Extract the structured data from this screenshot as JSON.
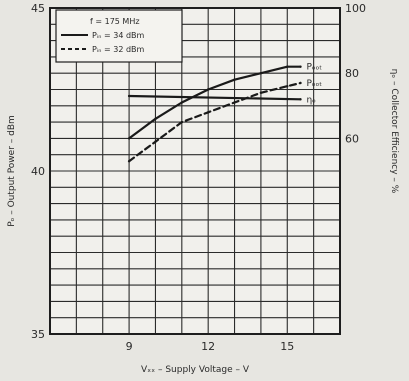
{
  "chart_data": {
    "type": "line",
    "xlabel": "Vₓₓ – Supply Voltage – V",
    "ylabel_left": "Pₒ – Output Power – dBm",
    "ylabel_right": "ηₒ – Collector Efficiency – %",
    "xlim": [
      6,
      17
    ],
    "ylim_left": [
      35,
      45
    ],
    "ylim_right": [
      0,
      100
    ],
    "x_ticks": [
      9,
      12,
      15
    ],
    "y_ticks_left": [
      35,
      40,
      45
    ],
    "y_ticks_right": [
      60,
      80,
      100
    ],
    "grid": true,
    "legend": {
      "placement": "top-left",
      "condition": "f = 175 MHz",
      "entries": [
        "Pᵢₙ = 34 dBm",
        "Pᵢₙ = 32 dBm"
      ]
    },
    "series": [
      {
        "name": "Pᵢₙ = 34 dBm",
        "label": "Pₒₒₜ",
        "axis": "left",
        "style": "solid",
        "x": [
          9,
          10,
          11,
          12,
          13,
          14,
          15,
          15.5
        ],
        "y": [
          41.0,
          41.6,
          42.1,
          42.5,
          42.8,
          43.0,
          43.2,
          43.2
        ]
      },
      {
        "name": "Pᵢₙ = 32 dBm",
        "label": "Pₒₒₜ",
        "axis": "left",
        "style": "dashed",
        "x": [
          9,
          10,
          11,
          12,
          13,
          14,
          15,
          15.5
        ],
        "y": [
          40.3,
          40.9,
          41.5,
          41.8,
          42.1,
          42.4,
          42.6,
          42.7
        ]
      },
      {
        "label": "ηₒ",
        "axis": "right",
        "style": "solid",
        "x": [
          9,
          15.5
        ],
        "y": [
          73,
          72
        ]
      }
    ]
  }
}
